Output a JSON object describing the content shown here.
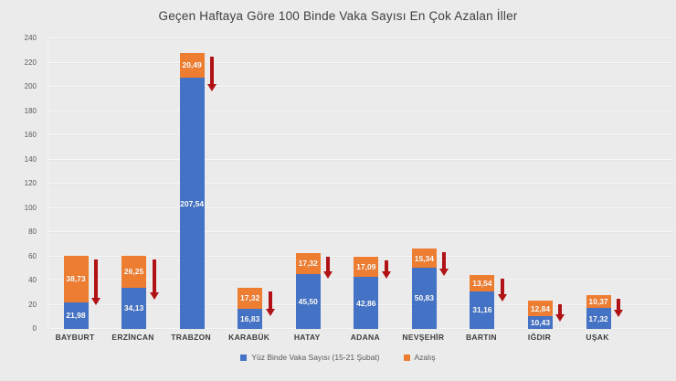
{
  "chart_data": {
    "type": "bar",
    "stacked": true,
    "title": "Geçen Haftaya Göre 100 Binde Vaka Sayısı En Çok Azalan İller",
    "categories": [
      "BAYBURT",
      "ERZİNCAN",
      "TRABZON",
      "KARABÜK",
      "HATAY",
      "ADANA",
      "NEVŞEHİR",
      "BARTIN",
      "IĞDIR",
      "UŞAK"
    ],
    "series": [
      {
        "name": "Yüz Binde Vaka Sayısı (15-21 Şubat)",
        "color": "#4472C4",
        "values": [
          21.98,
          34.13,
          207.54,
          16.83,
          45.5,
          42.86,
          50.83,
          31.16,
          10.43,
          17.32
        ],
        "labels": [
          "21,98",
          "34,13",
          "207,54",
          "16,83",
          "45,50",
          "42,86",
          "50,83",
          "31,16",
          "10,43",
          "17,32"
        ]
      },
      {
        "name": "Azalış",
        "color": "#ED7D31",
        "values": [
          38.73,
          26.25,
          20.49,
          17.32,
          17.32,
          17.09,
          15.34,
          13.54,
          12.84,
          10.37
        ],
        "labels": [
          "38,73",
          "26,25",
          "20,49",
          "17,32",
          "17,32",
          "17,09",
          "15,34",
          "13,54",
          "12,84",
          "10,37"
        ]
      }
    ],
    "ylim": [
      0,
      240
    ],
    "yticks": [
      0,
      20,
      40,
      60,
      80,
      100,
      120,
      140,
      160,
      180,
      200,
      220,
      240
    ],
    "grid": true,
    "legend_position": "bottom",
    "annotations": {
      "decrease_arrow_color": "#B01215",
      "decrease_arrow_meaning": "downward red arrow beside every bar indicating decrease"
    },
    "background": "#ECEBEB"
  }
}
